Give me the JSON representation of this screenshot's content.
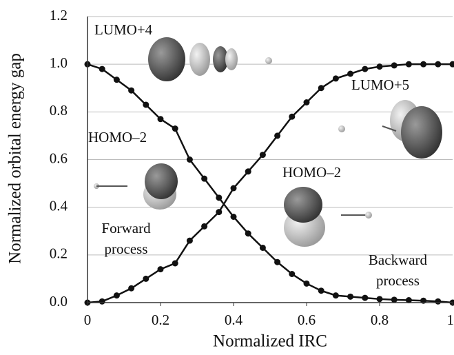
{
  "chart_data": {
    "type": "line",
    "x_label": "Normalized IRC",
    "y_label": "Normalized orbital energy gap",
    "x": [
      0,
      0.04,
      0.08,
      0.12,
      0.16,
      0.2,
      0.24,
      0.28,
      0.32,
      0.36,
      0.4,
      0.44,
      0.48,
      0.52,
      0.56,
      0.6,
      0.64,
      0.68,
      0.72,
      0.76,
      0.8,
      0.84,
      0.88,
      0.92,
      0.96,
      1
    ],
    "series": [
      {
        "color": "#111111",
        "values": [
          1.0,
          0.98,
          0.935,
          0.89,
          0.83,
          0.77,
          0.73,
          0.6,
          0.52,
          0.44,
          0.36,
          0.29,
          0.23,
          0.17,
          0.12,
          0.08,
          0.05,
          0.03,
          0.025,
          0.02,
          0.015,
          0.012,
          0.01,
          0.008,
          0.005,
          0.0
        ]
      },
      {
        "color": "#111111",
        "values": [
          0.0,
          0.005,
          0.03,
          0.06,
          0.1,
          0.14,
          0.165,
          0.26,
          0.32,
          0.38,
          0.48,
          0.55,
          0.62,
          0.7,
          0.78,
          0.84,
          0.9,
          0.94,
          0.96,
          0.98,
          0.99,
          0.995,
          1.0,
          1.0,
          1.0,
          1.0
        ]
      }
    ],
    "xlim": [
      0,
      1
    ],
    "xticks": [
      0,
      0.2,
      0.4,
      0.6,
      0.8,
      1
    ],
    "ylim": [
      0,
      1.2
    ],
    "yticks": [
      {
        "value": 0,
        "label": "0.0"
      },
      0.2,
      0.4,
      0.6,
      0.8,
      {
        "value": 1,
        "label": "1.0"
      },
      1.2
    ],
    "grid": true,
    "annotations": [
      "LUMO+4",
      "LUMO+5",
      "HOMO–2",
      "HOMO–2",
      "Forward process",
      "Backward process"
    ]
  }
}
